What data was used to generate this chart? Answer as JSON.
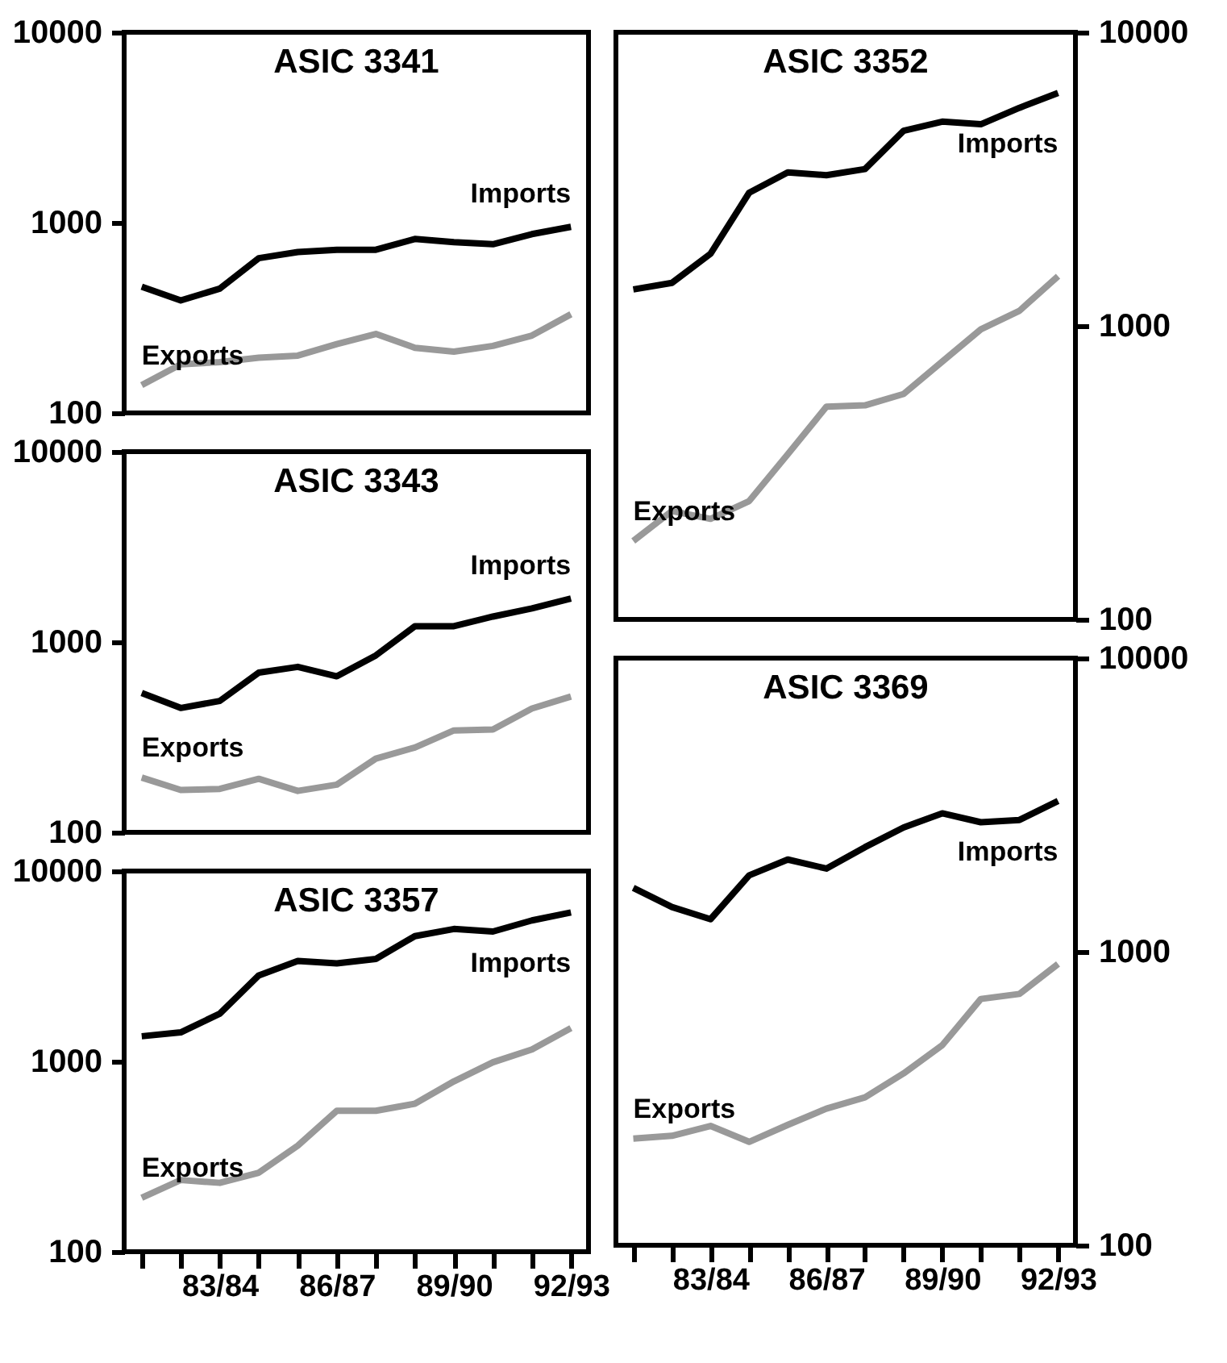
{
  "chart_data": [
    {
      "type": "line",
      "title": "ASIC 3341",
      "log": true,
      "ylim": [
        100,
        10000
      ],
      "yticks": [
        100,
        1000,
        10000
      ],
      "tick_labels": "y",
      "categories": [
        null,
        null,
        null,
        null,
        null,
        null,
        null,
        null,
        null,
        null,
        null,
        null
      ],
      "series": [
        {
          "name": "Imports",
          "color": "#000000",
          "values": [
            460,
            390,
            450,
            650,
            700,
            720,
            720,
            820,
            790,
            770,
            870,
            950
          ]
        },
        {
          "name": "Exports",
          "color": "#999999",
          "values": [
            140,
            180,
            185,
            195,
            200,
            230,
            260,
            220,
            210,
            225,
            255,
            330
          ]
        }
      ]
    },
    {
      "type": "line",
      "title": "ASIC 3352",
      "log": true,
      "ylim": [
        100,
        10000
      ],
      "yticks": [
        100,
        1000,
        10000
      ],
      "tick_labels": "y",
      "categories": [
        null,
        null,
        null,
        null,
        null,
        null,
        null,
        null,
        null,
        null,
        null,
        null
      ],
      "series": [
        {
          "name": "Imports",
          "color": "#000000",
          "values": [
            1330,
            1400,
            1760,
            2840,
            3330,
            3260,
            3420,
            4620,
            4960,
            4860,
            5530,
            6210
          ]
        },
        {
          "name": "Exports",
          "color": "#999999",
          "values": [
            185,
            234,
            220,
            253,
            365,
            530,
            536,
            586,
            755,
            973,
            1125,
            1476
          ]
        }
      ]
    },
    {
      "type": "line",
      "title": "ASIC 3343",
      "log": true,
      "ylim": [
        100,
        10000
      ],
      "yticks": [
        100,
        1000,
        10000
      ],
      "tick_labels": "y",
      "categories": [
        null,
        null,
        null,
        null,
        null,
        null,
        null,
        null,
        null,
        null,
        null,
        null
      ],
      "series": [
        {
          "name": "Imports",
          "color": "#000000",
          "values": [
            540,
            450,
            490,
            690,
            740,
            660,
            850,
            1210,
            1210,
            1360,
            1500,
            1690
          ]
        },
        {
          "name": "Exports",
          "color": "#999999",
          "values": [
            194,
            167,
            169,
            191,
            165,
            178,
            244,
            279,
            343,
            347,
            447,
            517
          ]
        }
      ]
    },
    {
      "type": "line",
      "title": "ASIC 3369",
      "log": true,
      "ylim": [
        100,
        10000
      ],
      "yticks": [
        100,
        1000,
        10000
      ],
      "categories": [
        null,
        null,
        "83/84",
        null,
        null,
        "86/87",
        null,
        null,
        "89/90",
        null,
        null,
        "92/93"
      ],
      "series": [
        {
          "name": "Imports",
          "color": "#000000",
          "values": [
            1650,
            1420,
            1290,
            1820,
            2060,
            1920,
            2270,
            2650,
            2960,
            2760,
            2810,
            3260
          ]
        },
        {
          "name": "Exports",
          "color": "#999999",
          "values": [
            231,
            236,
            255,
            225,
            257,
            292,
            319,
            385,
            480,
            690,
            718,
            908
          ]
        }
      ]
    },
    {
      "type": "line",
      "title": "ASIC 3357",
      "log": true,
      "ylim": [
        100,
        10000
      ],
      "yticks": [
        100,
        1000,
        10000
      ],
      "categories": [
        null,
        null,
        "83/84",
        null,
        null,
        "86/87",
        null,
        null,
        "89/90",
        null,
        null,
        "92/93"
      ],
      "series": [
        {
          "name": "Imports",
          "color": "#000000",
          "values": [
            1355,
            1420,
            1780,
            2830,
            3370,
            3270,
            3450,
            4550,
            4960,
            4810,
            5500,
            6060
          ]
        },
        {
          "name": "Exports",
          "color": "#999999",
          "values": [
            192,
            238,
            230,
            260,
            361,
            550,
            550,
            599,
            785,
            989,
            1155,
            1496
          ]
        }
      ]
    }
  ]
}
